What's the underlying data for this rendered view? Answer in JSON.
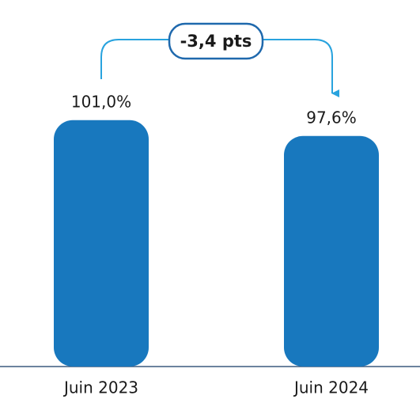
{
  "chart_data": {
    "type": "bar",
    "categories": [
      "Juin 2023",
      "Juin 2024"
    ],
    "values": [
      101.0,
      97.6
    ],
    "value_labels": [
      "101,0%",
      "97,6%"
    ],
    "color": "#1878be",
    "annotation": "-3,4 pts",
    "ylim": [
      48,
      126
    ]
  }
}
